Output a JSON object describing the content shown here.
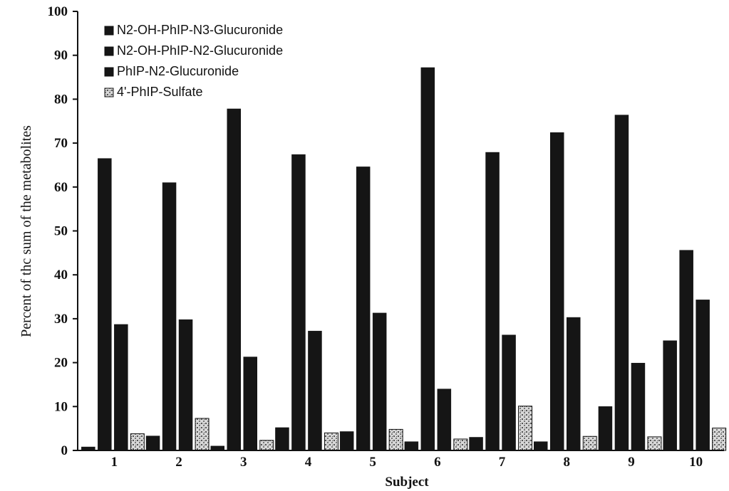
{
  "chart_data": {
    "type": "bar",
    "xlabel": "Subject",
    "ylabel": "Percent of thc sum of the metabolites",
    "ylim": [
      0,
      100
    ],
    "yticks": [
      "0",
      "10",
      "20",
      "30",
      "40",
      "50",
      "60",
      "70",
      "80",
      "90",
      "100"
    ],
    "categories": [
      "1",
      "2",
      "3",
      "4",
      "5",
      "6",
      "7",
      "8",
      "9",
      "10"
    ],
    "grid": false,
    "legend_position": "top-left",
    "series": [
      {
        "name": "N2-OH-PhIP-N3-Glucuronide",
        "color": "#151515",
        "pattern": "solid",
        "values": [
          0.8,
          3.3,
          1.0,
          5.2,
          4.3,
          2.0,
          3.0,
          2.0,
          10.0,
          25.0
        ]
      },
      {
        "name": "N2-OH-PhIP-N2-Glucuronide",
        "color": "#151515",
        "pattern": "solid",
        "values": [
          66.5,
          61.0,
          77.8,
          67.4,
          64.6,
          87.2,
          67.9,
          72.4,
          76.4,
          45.6
        ]
      },
      {
        "name": "PhIP-N2-Glucuronide",
        "color": "#151515",
        "pattern": "solid",
        "values": [
          28.7,
          29.8,
          21.3,
          27.2,
          31.3,
          14.0,
          26.3,
          30.3,
          19.9,
          34.3
        ]
      },
      {
        "name": "4'-PhIP-Sulfate",
        "color": "#cfcfcf",
        "pattern": "speckled",
        "values": [
          3.8,
          7.3,
          2.3,
          4.0,
          4.8,
          2.6,
          10.1,
          3.2,
          3.1,
          5.1
        ]
      }
    ]
  }
}
